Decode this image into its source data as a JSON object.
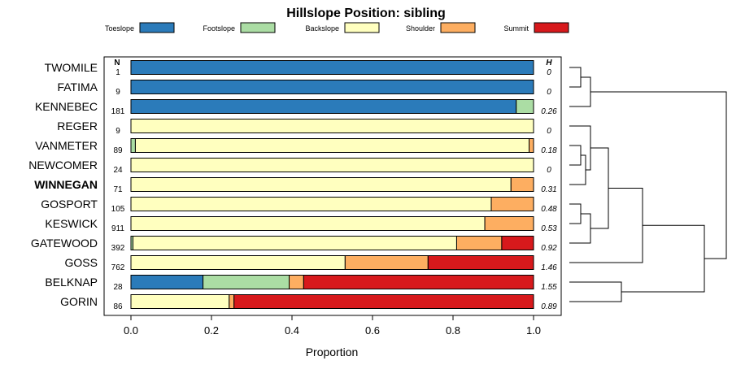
{
  "chart_data": {
    "type": "stacked-bar-horizontal",
    "title": "Hillslope Position: sibling",
    "xlabel": "Proportion",
    "xlim": [
      0,
      1
    ],
    "x_ticks": [
      "0.0",
      "0.2",
      "0.4",
      "0.6",
      "0.8",
      "1.0"
    ],
    "n_header": "N",
    "h_header": "H",
    "legend": [
      {
        "label": "Toeslope",
        "color": "#2B7BBA"
      },
      {
        "label": "Footslope",
        "color": "#ABDDA4"
      },
      {
        "label": "Backslope",
        "color": "#FFFFBF"
      },
      {
        "label": "Shoulder",
        "color": "#FDAE61"
      },
      {
        "label": "Summit",
        "color": "#D7191C"
      }
    ],
    "rows": [
      {
        "name": "TWOMILE",
        "n": "1",
        "h": "0",
        "bold": false,
        "values": [
          1.0,
          0,
          0,
          0,
          0
        ]
      },
      {
        "name": "FATIMA",
        "n": "9",
        "h": "0",
        "bold": false,
        "values": [
          1.0,
          0,
          0,
          0,
          0
        ]
      },
      {
        "name": "KENNEBEC",
        "n": "181",
        "h": "0.26",
        "bold": false,
        "values": [
          0.957,
          0.043,
          0,
          0,
          0
        ]
      },
      {
        "name": "REGER",
        "n": "9",
        "h": "0",
        "bold": false,
        "values": [
          0,
          0,
          1.0,
          0,
          0
        ]
      },
      {
        "name": "VANMETER",
        "n": "89",
        "h": "0.18",
        "bold": false,
        "values": [
          0,
          0.011,
          0.978,
          0.011,
          0
        ]
      },
      {
        "name": "NEWCOMER",
        "n": "24",
        "h": "0",
        "bold": false,
        "values": [
          0,
          0,
          1.0,
          0,
          0
        ]
      },
      {
        "name": "WINNEGAN",
        "n": "71",
        "h": "0.31",
        "bold": true,
        "values": [
          0,
          0,
          0.944,
          0.056,
          0
        ]
      },
      {
        "name": "GOSPORT",
        "n": "105",
        "h": "0.48",
        "bold": false,
        "values": [
          0,
          0,
          0.895,
          0.105,
          0
        ]
      },
      {
        "name": "KESWICK",
        "n": "911",
        "h": "0.53",
        "bold": false,
        "values": [
          0,
          0,
          0.879,
          0.121,
          0
        ]
      },
      {
        "name": "GATEWOOD",
        "n": "392",
        "h": "0.92",
        "bold": false,
        "values": [
          0,
          0.005,
          0.804,
          0.112,
          0.079
        ]
      },
      {
        "name": "GOSS",
        "n": "762",
        "h": "1.46",
        "bold": false,
        "values": [
          0,
          0,
          0.532,
          0.206,
          0.262
        ]
      },
      {
        "name": "BELKNAP",
        "n": "28",
        "h": "1.55",
        "bold": false,
        "values": [
          0.179,
          0.214,
          0,
          0.036,
          0.571
        ]
      },
      {
        "name": "GORIN",
        "n": "86",
        "h": "0.89",
        "bold": false,
        "values": [
          0,
          0,
          0.244,
          0.012,
          0.744
        ]
      }
    ]
  }
}
